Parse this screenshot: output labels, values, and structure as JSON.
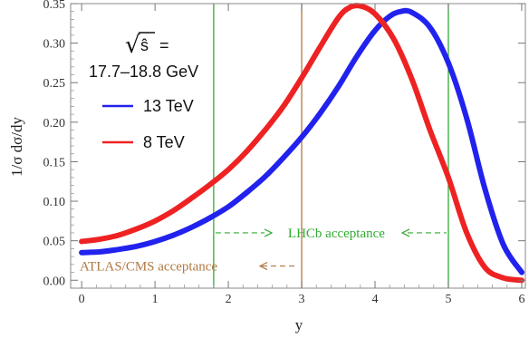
{
  "chart_data": {
    "type": "line",
    "xlabel": "y",
    "ylabel": "1/σ dσ/dy",
    "xlim": [
      -0.15,
      6.05
    ],
    "ylim": [
      -0.01,
      0.35
    ],
    "xticks": [
      "0",
      "1",
      "2",
      "3",
      "4",
      "5",
      "6"
    ],
    "yticks": [
      "0.00",
      "0.05",
      "0.10",
      "0.15",
      "0.20",
      "0.25",
      "0.30",
      "0.35"
    ],
    "legend": {
      "sqrt_symbol": "√",
      "sqrt_var": "ŝ",
      "equals": "=",
      "range": "17.7–18.8 GeV",
      "placement": "top-left"
    },
    "series": [
      {
        "name": "13 TeV",
        "color": "#2222ee",
        "x": [
          0,
          0.25,
          0.5,
          0.75,
          1.0,
          1.25,
          1.5,
          1.75,
          2.0,
          2.25,
          2.5,
          2.75,
          3.0,
          3.25,
          3.5,
          3.75,
          4.0,
          4.2,
          4.35,
          4.5,
          4.75,
          5.0,
          5.25,
          5.5,
          5.75,
          6.0
        ],
        "y": [
          0.035,
          0.036,
          0.039,
          0.043,
          0.049,
          0.057,
          0.067,
          0.079,
          0.093,
          0.111,
          0.131,
          0.155,
          0.181,
          0.211,
          0.245,
          0.283,
          0.316,
          0.334,
          0.34,
          0.339,
          0.32,
          0.275,
          0.205,
          0.115,
          0.045,
          0.01
        ]
      },
      {
        "name": "8 TeV",
        "color": "#ee2222",
        "x": [
          0,
          0.25,
          0.5,
          0.75,
          1.0,
          1.25,
          1.5,
          1.75,
          2.0,
          2.25,
          2.5,
          2.75,
          3.0,
          3.25,
          3.5,
          3.65,
          3.8,
          4.0,
          4.25,
          4.5,
          4.75,
          5.0,
          5.25,
          5.5,
          5.75,
          6.0
        ],
        "y": [
          0.049,
          0.052,
          0.057,
          0.065,
          0.075,
          0.088,
          0.104,
          0.121,
          0.14,
          0.163,
          0.19,
          0.22,
          0.256,
          0.295,
          0.332,
          0.345,
          0.347,
          0.337,
          0.306,
          0.255,
          0.19,
          0.13,
          0.06,
          0.016,
          0.003,
          0.0
        ]
      }
    ],
    "vertical_lines": [
      {
        "x": 1.8,
        "color": "#33aa33"
      },
      {
        "x": 3.0,
        "color": "#b07840"
      },
      {
        "x": 5.0,
        "color": "#33aa33"
      }
    ],
    "annotations": [
      {
        "text": "LHCb acceptance",
        "color": "#33aa33",
        "x_from": 1.8,
        "x_to": 5.0,
        "y": 0.06
      },
      {
        "text": "ATLAS/CMS acceptance",
        "color": "#b07840",
        "x_end": 3.0,
        "y": 0.018
      }
    ],
    "grid": false
  }
}
